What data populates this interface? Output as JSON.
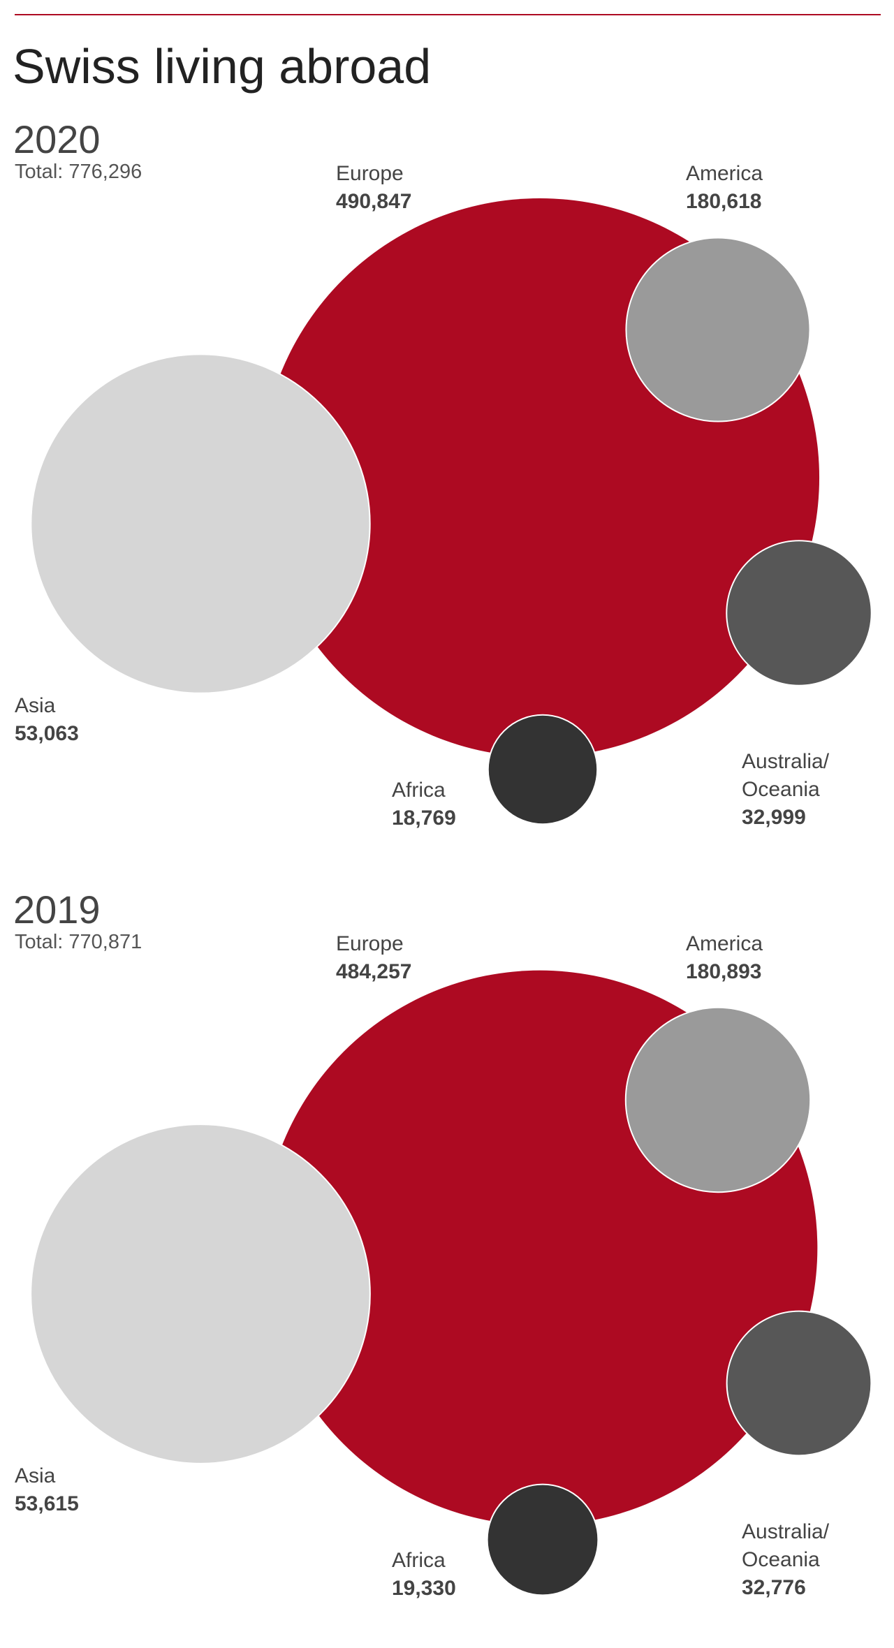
{
  "title": "Swiss living abroad",
  "chart_data": [
    {
      "type": "bubble",
      "title": "2020",
      "subtitle": "Total: 776,296",
      "categories": [
        "Europe",
        "America",
        "Asia",
        "Australia/ Oceania",
        "Africa"
      ],
      "values": [
        490847,
        180618,
        53063,
        32999,
        18769
      ],
      "value_labels": [
        "490,847",
        "180,618",
        "53,063",
        "32,999",
        "18,769"
      ],
      "colors": [
        "#ad0a22",
        "#d6d6d6",
        "#9a9a9a",
        "#575757",
        "#333333"
      ]
    },
    {
      "type": "bubble",
      "title": "2019",
      "subtitle": "Total: 770,871",
      "categories": [
        "Europe",
        "America",
        "Asia",
        "Australia/ Oceania",
        "Africa"
      ],
      "values": [
        484257,
        180893,
        53615,
        32776,
        19330
      ],
      "value_labels": [
        "484,257",
        "180,893",
        "53,615",
        "32,776",
        "19,330"
      ],
      "colors": [
        "#ad0a22",
        "#d6d6d6",
        "#9a9a9a",
        "#575757",
        "#333333"
      ]
    }
  ]
}
